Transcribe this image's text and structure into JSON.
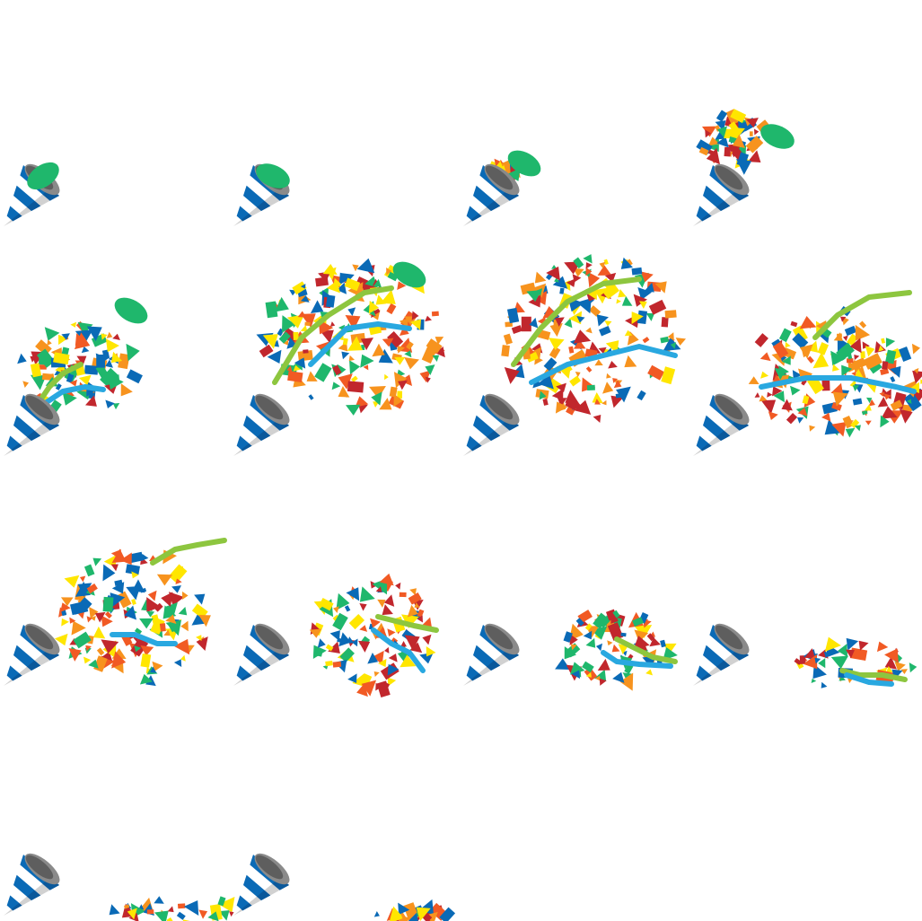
{
  "sprite_sheet": {
    "name": "party-popper-animation",
    "grid": {
      "columns": 4,
      "rows": 4
    },
    "frame_count": 14,
    "colors": {
      "cone_blue": "#0a6ab6",
      "cone_white": "#ffffff",
      "cone_gray": "#c9c9c9",
      "mouth_dark": "#5e5e5e",
      "mouth_mid": "#8a8a8a",
      "cap_green": "#1fb76c",
      "streamer_green": "#8dc63f",
      "streamer_blue": "#29a8e0",
      "confetti": [
        "#0a6ab6",
        "#f7931e",
        "#c1272d",
        "#ffe600",
        "#1fb76c",
        "#f15a24"
      ]
    },
    "frames": [
      {
        "phase": "idle-cap-on",
        "spray": 0,
        "cap": "seated",
        "streamers": false
      },
      {
        "phase": "cap-lifting",
        "spray": 0,
        "cap": "lifting",
        "streamers": false
      },
      {
        "phase": "pop-start",
        "spray": 0.08,
        "cap": "popping",
        "streamers": false
      },
      {
        "phase": "pop-burst",
        "spray": 0.22,
        "cap": "flying",
        "streamers": false
      },
      {
        "phase": "spray-launch",
        "spray": 0.45,
        "cap": "away",
        "streamers": true
      },
      {
        "phase": "spray-peak",
        "spray": 1.0,
        "cap": "away",
        "streamers": true
      },
      {
        "phase": "spray-drift",
        "spray": 1.0,
        "cap": "gone",
        "streamers": true
      },
      {
        "phase": "spray-drift-right",
        "spray": 0.9,
        "cap": "gone",
        "streamers": true
      },
      {
        "phase": "spray-falling",
        "spray": 0.75,
        "cap": "gone",
        "streamers": true
      },
      {
        "phase": "spray-settling",
        "spray": 0.55,
        "cap": "gone",
        "streamers": true
      },
      {
        "phase": "spray-low",
        "spray": 0.4,
        "cap": "gone",
        "streamers": true
      },
      {
        "phase": "spray-floor",
        "spray": 0.2,
        "cap": "gone",
        "streamers": true
      },
      {
        "phase": "settled",
        "spray": 0.12,
        "cap": "gone",
        "streamers": false
      },
      {
        "phase": "settled-sparse",
        "spray": 0.08,
        "cap": "gone",
        "streamers": false
      }
    ]
  }
}
